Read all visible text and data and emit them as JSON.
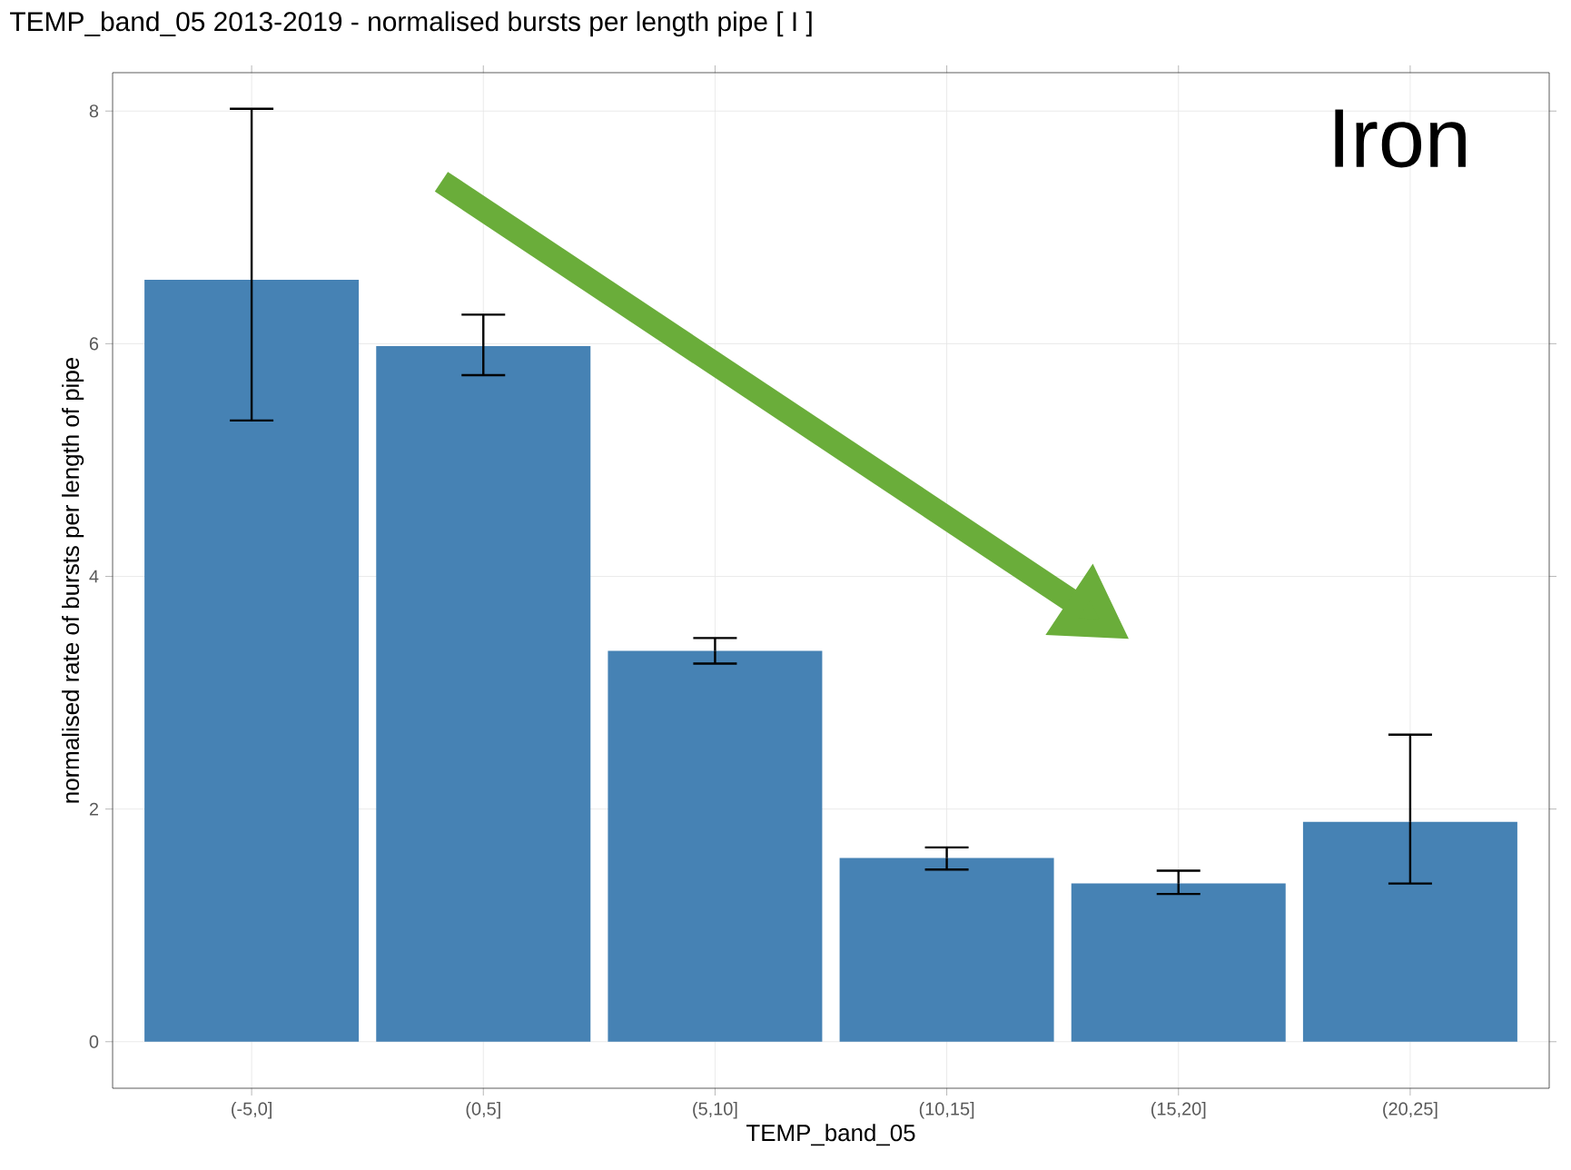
{
  "chart_data": {
    "type": "bar",
    "title": "TEMP_band_05 2013-2019  -  normalised bursts per length pipe [ I ]",
    "xlabel": "TEMP_band_05",
    "ylabel": "normalised rate of bursts per length of pipe",
    "annotations": [
      "Iron"
    ],
    "categories": [
      "(-5,0]",
      "(0,5]",
      "(5,10]",
      "(10,15]",
      "(15,20]",
      "(20,25]"
    ],
    "values": [
      6.55,
      5.98,
      3.36,
      1.58,
      1.36,
      1.89
    ],
    "errors": [
      [
        5.34,
        8.02
      ],
      [
        5.73,
        6.25
      ],
      [
        3.25,
        3.47
      ],
      [
        1.48,
        1.67
      ],
      [
        1.27,
        1.47
      ],
      [
        1.36,
        2.64
      ]
    ],
    "color": "#4682b4",
    "ylim": [
      -0.4,
      8.33
    ],
    "yticks": [
      0,
      2,
      4,
      6,
      8
    ],
    "grid": true
  }
}
